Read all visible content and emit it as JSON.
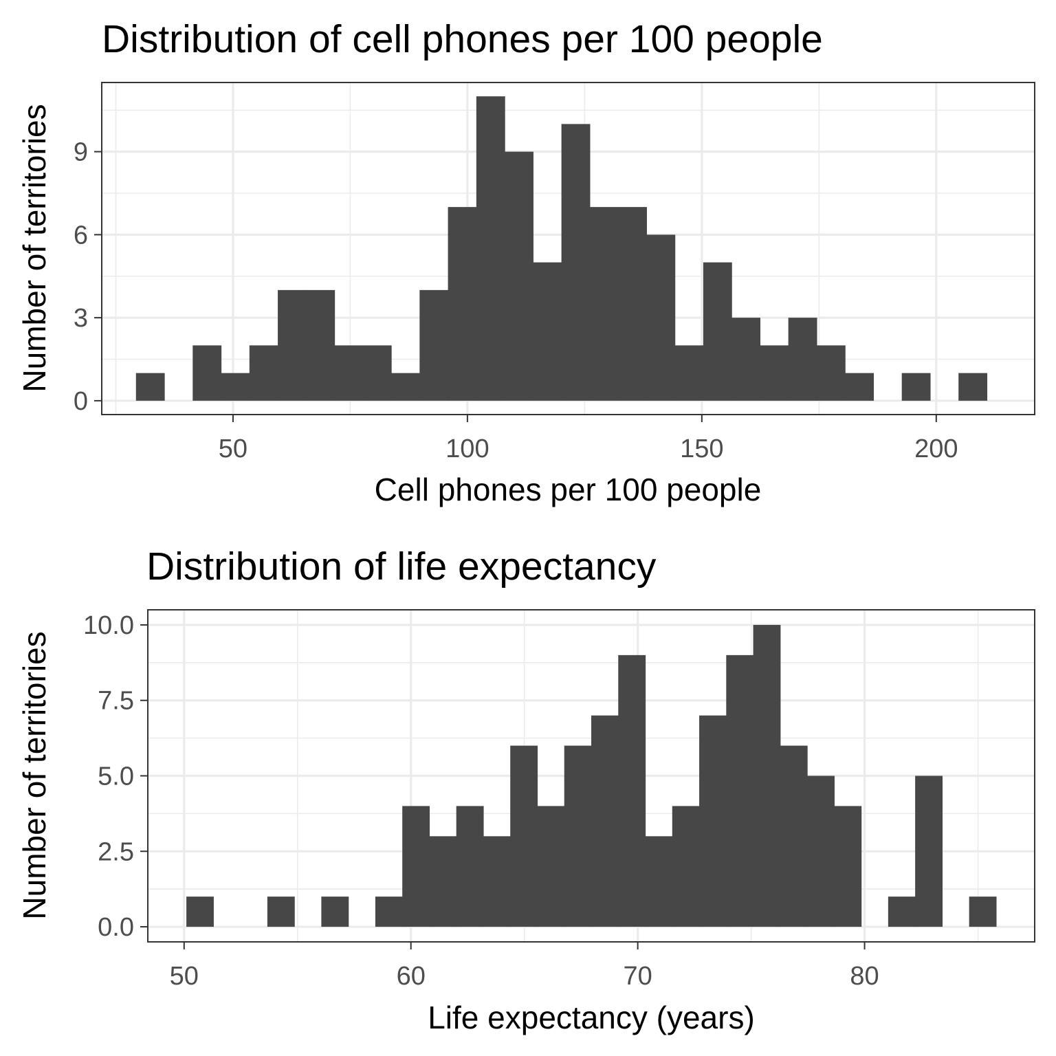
{
  "colors": {
    "bar": "#474747",
    "grid": "#ebebeb",
    "border": "#333333",
    "tick_text": "#4d4d4d"
  },
  "chart_data": [
    {
      "type": "bar",
      "subtype": "histogram",
      "title": "Distribution of cell phones per 100 people",
      "xlabel": "Cell phones per 100 people",
      "ylabel": "Number of territories",
      "xlim": [
        22,
        221
      ],
      "ylim": [
        -0.5,
        11.5
      ],
      "bin_width": 6.05,
      "first_bin_start": 29.3,
      "counts": [
        1,
        0,
        2,
        1,
        2,
        4,
        4,
        2,
        2,
        1,
        4,
        7,
        11,
        9,
        5,
        10,
        7,
        7,
        6,
        2,
        5,
        3,
        2,
        3,
        2,
        1,
        0,
        1,
        0,
        1
      ],
      "x_ticks": [
        50,
        100,
        150,
        200
      ],
      "x_minor_ticks": [
        25,
        75,
        125,
        175
      ],
      "y_ticks": [
        0,
        3,
        6,
        9
      ],
      "y_tick_labels": [
        "0",
        "3",
        "6",
        "9"
      ],
      "y_minor_ticks": [
        1.5,
        4.5,
        7.5,
        10.5
      ],
      "grid": true
    },
    {
      "type": "bar",
      "subtype": "histogram",
      "title": "Distribution of life expectancy",
      "xlabel": "Life expectancy (years)",
      "ylabel": "Number of territories",
      "xlim": [
        48.4,
        87.5
      ],
      "ylim": [
        -0.5,
        10.5
      ],
      "bin_width": 1.19,
      "first_bin_start": 50.1,
      "counts": [
        1,
        0,
        0,
        1,
        0,
        1,
        0,
        1,
        4,
        3,
        4,
        3,
        6,
        4,
        6,
        7,
        9,
        3,
        4,
        7,
        9,
        10,
        6,
        5,
        4,
        0,
        1,
        5,
        0,
        1
      ],
      "x_ticks": [
        50,
        60,
        70,
        80
      ],
      "x_minor_ticks": [
        55,
        65,
        75,
        85
      ],
      "y_ticks": [
        0,
        2.5,
        5,
        7.5,
        10
      ],
      "y_tick_labels": [
        "0.0",
        "2.5",
        "5.0",
        "7.5",
        "10.0"
      ],
      "y_minor_ticks": [
        1.25,
        3.75,
        6.25,
        8.75
      ],
      "grid": true
    }
  ]
}
